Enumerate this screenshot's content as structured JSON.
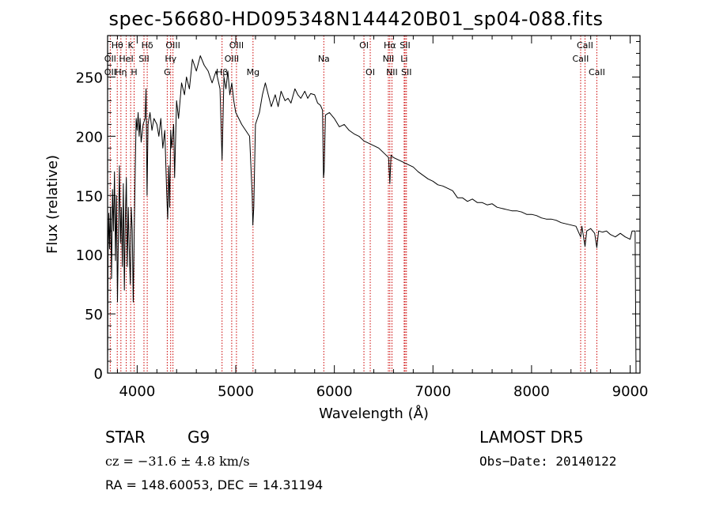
{
  "chart_data": {
    "type": "line",
    "title": "spec-56680-HD095348N144420B01_sp04-088.fits",
    "xlabel": "Wavelength (Å)",
    "ylabel": "Flux (relative)",
    "xlim": [
      3700,
      9100
    ],
    "ylim": [
      0,
      285
    ],
    "xticks": [
      4000,
      5000,
      6000,
      7000,
      8000,
      9000
    ],
    "yticks": [
      0,
      50,
      100,
      150,
      200,
      250
    ],
    "grid": false,
    "series": [
      {
        "points": [
          [
            3700,
            0
          ],
          [
            3705,
            100
          ],
          [
            3712,
            135
          ],
          [
            3720,
            105
          ],
          [
            3730,
            140
          ],
          [
            3740,
            80
          ],
          [
            3750,
            155
          ],
          [
            3760,
            120
          ],
          [
            3770,
            170
          ],
          [
            3780,
            95
          ],
          [
            3790,
            150
          ],
          [
            3800,
            60
          ],
          [
            3810,
            120
          ],
          [
            3820,
            175
          ],
          [
            3830,
            110
          ],
          [
            3840,
            140
          ],
          [
            3850,
            90
          ],
          [
            3860,
            160
          ],
          [
            3870,
            70
          ],
          [
            3880,
            130
          ],
          [
            3890,
            165
          ],
          [
            3900,
            90
          ],
          [
            3910,
            140
          ],
          [
            3920,
            105
          ],
          [
            3930,
            75
          ],
          [
            3940,
            140
          ],
          [
            3950,
            120
          ],
          [
            3960,
            60
          ],
          [
            3970,
            120
          ],
          [
            3980,
            170
          ],
          [
            3990,
            215
          ],
          [
            4000,
            205
          ],
          [
            4010,
            220
          ],
          [
            4020,
            200
          ],
          [
            4030,
            215
          ],
          [
            4040,
            195
          ],
          [
            4060,
            210
          ],
          [
            4080,
            215
          ],
          [
            4090,
            240
          ],
          [
            4100,
            150
          ],
          [
            4110,
            210
          ],
          [
            4130,
            220
          ],
          [
            4150,
            205
          ],
          [
            4170,
            215
          ],
          [
            4200,
            210
          ],
          [
            4220,
            200
          ],
          [
            4240,
            215
          ],
          [
            4260,
            190
          ],
          [
            4280,
            205
          ],
          [
            4300,
            150
          ],
          [
            4310,
            130
          ],
          [
            4320,
            175
          ],
          [
            4330,
            140
          ],
          [
            4340,
            205
          ],
          [
            4350,
            190
          ],
          [
            4370,
            210
          ],
          [
            4380,
            165
          ],
          [
            4400,
            230
          ],
          [
            4420,
            215
          ],
          [
            4450,
            245
          ],
          [
            4480,
            235
          ],
          [
            4500,
            250
          ],
          [
            4530,
            240
          ],
          [
            4560,
            265
          ],
          [
            4600,
            255
          ],
          [
            4640,
            268
          ],
          [
            4680,
            260
          ],
          [
            4720,
            255
          ],
          [
            4760,
            245
          ],
          [
            4800,
            255
          ],
          [
            4840,
            240
          ],
          [
            4861,
            180
          ],
          [
            4880,
            250
          ],
          [
            4900,
            240
          ],
          [
            4920,
            255
          ],
          [
            4940,
            235
          ],
          [
            4960,
            245
          ],
          [
            4980,
            230
          ],
          [
            5000,
            220
          ],
          [
            5030,
            215
          ],
          [
            5060,
            210
          ],
          [
            5100,
            205
          ],
          [
            5140,
            200
          ],
          [
            5167,
            150
          ],
          [
            5173,
            125
          ],
          [
            5183,
            140
          ],
          [
            5200,
            210
          ],
          [
            5240,
            220
          ],
          [
            5270,
            235
          ],
          [
            5300,
            245
          ],
          [
            5330,
            235
          ],
          [
            5360,
            225
          ],
          [
            5400,
            235
          ],
          [
            5430,
            225
          ],
          [
            5460,
            238
          ],
          [
            5500,
            230
          ],
          [
            5530,
            232
          ],
          [
            5560,
            228
          ],
          [
            5600,
            240
          ],
          [
            5630,
            235
          ],
          [
            5660,
            232
          ],
          [
            5700,
            238
          ],
          [
            5730,
            232
          ],
          [
            5760,
            236
          ],
          [
            5800,
            235
          ],
          [
            5830,
            228
          ],
          [
            5860,
            226
          ],
          [
            5880,
            222
          ],
          [
            5890,
            165
          ],
          [
            5896,
            170
          ],
          [
            5910,
            218
          ],
          [
            5950,
            220
          ],
          [
            6000,
            215
          ],
          [
            6050,
            208
          ],
          [
            6100,
            210
          ],
          [
            6150,
            205
          ],
          [
            6200,
            202
          ],
          [
            6250,
            200
          ],
          [
            6300,
            196
          ],
          [
            6350,
            194
          ],
          [
            6400,
            192
          ],
          [
            6450,
            190
          ],
          [
            6500,
            186
          ],
          [
            6550,
            182
          ],
          [
            6563,
            160
          ],
          [
            6575,
            184
          ],
          [
            6600,
            182
          ],
          [
            6650,
            180
          ],
          [
            6700,
            178
          ],
          [
            6750,
            176
          ],
          [
            6800,
            174
          ],
          [
            6850,
            170
          ],
          [
            6900,
            167
          ],
          [
            6950,
            164
          ],
          [
            7000,
            162
          ],
          [
            7050,
            159
          ],
          [
            7100,
            158
          ],
          [
            7150,
            156
          ],
          [
            7200,
            154
          ],
          [
            7250,
            148
          ],
          [
            7300,
            148
          ],
          [
            7350,
            145
          ],
          [
            7400,
            147
          ],
          [
            7450,
            144
          ],
          [
            7500,
            144
          ],
          [
            7550,
            142
          ],
          [
            7600,
            143
          ],
          [
            7650,
            140
          ],
          [
            7700,
            139
          ],
          [
            7750,
            138
          ],
          [
            7800,
            137
          ],
          [
            7850,
            137
          ],
          [
            7900,
            136
          ],
          [
            7950,
            134
          ],
          [
            8000,
            134
          ],
          [
            8050,
            133
          ],
          [
            8100,
            131
          ],
          [
            8150,
            130
          ],
          [
            8200,
            130
          ],
          [
            8250,
            129
          ],
          [
            8300,
            127
          ],
          [
            8350,
            126
          ],
          [
            8400,
            125
          ],
          [
            8450,
            124
          ],
          [
            8498,
            115
          ],
          [
            8510,
            124
          ],
          [
            8542,
            107
          ],
          [
            8560,
            120
          ],
          [
            8600,
            122
          ],
          [
            8640,
            118
          ],
          [
            8662,
            106
          ],
          [
            8680,
            120
          ],
          [
            8720,
            119
          ],
          [
            8760,
            120
          ],
          [
            8800,
            117
          ],
          [
            8850,
            115
          ],
          [
            8900,
            118
          ],
          [
            8950,
            115
          ],
          [
            9000,
            113
          ],
          [
            9020,
            120
          ],
          [
            9050,
            120
          ],
          [
            9060,
            0
          ]
        ]
      }
    ],
    "lines": {
      "upper": [
        {
          "label": "Hθ",
          "x": 3798
        },
        {
          "label": "K",
          "x": 3934
        },
        {
          "label": "Hδ",
          "x": 4102
        },
        {
          "label": "OIII",
          "x": 4363
        },
        {
          "label": "OIII",
          "x": 5007
        },
        {
          "label": "OI",
          "x": 6300
        },
        {
          "label": "Hα",
          "x": 6563
        },
        {
          "label": "SII",
          "x": 6717
        },
        {
          "label": "CaII",
          "x": 8542
        }
      ],
      "row2": [
        {
          "label": "OII",
          "x": 3727
        },
        {
          "label": "HeI",
          "x": 3889
        },
        {
          "label": "SII",
          "x": 4069
        },
        {
          "label": "Hγ",
          "x": 4340
        },
        {
          "label": "OIII",
          "x": 4959
        },
        {
          "label": "Na",
          "x": 5893
        },
        {
          "label": "NII",
          "x": 6548
        },
        {
          "label": "Li",
          "x": 6708
        },
        {
          "label": "CaII",
          "x": 8498
        }
      ],
      "row3": [
        {
          "label": "OII",
          "x": 3727
        },
        {
          "label": "Hη",
          "x": 3835
        },
        {
          "label": "H",
          "x": 3969
        },
        {
          "label": "G",
          "x": 4305
        },
        {
          "label": "Hβ",
          "x": 4861
        },
        {
          "label": "Mg",
          "x": 5175
        },
        {
          "label": "OI",
          "x": 6364
        },
        {
          "label": "NII",
          "x": 6584
        },
        {
          "label": "SII",
          "x": 6731
        },
        {
          "label": "CaII",
          "x": 8662
        }
      ],
      "line_color": "#cc0000"
    },
    "annotations": {
      "object_class": "STAR",
      "subclass": "G9",
      "survey": "LAMOST DR5",
      "cz": "cz = −31.6 ± 4.8 km/s",
      "obs_date": "Obs−Date: 20140122",
      "coords": "RA = 148.60053, DEC =  14.31194"
    }
  }
}
